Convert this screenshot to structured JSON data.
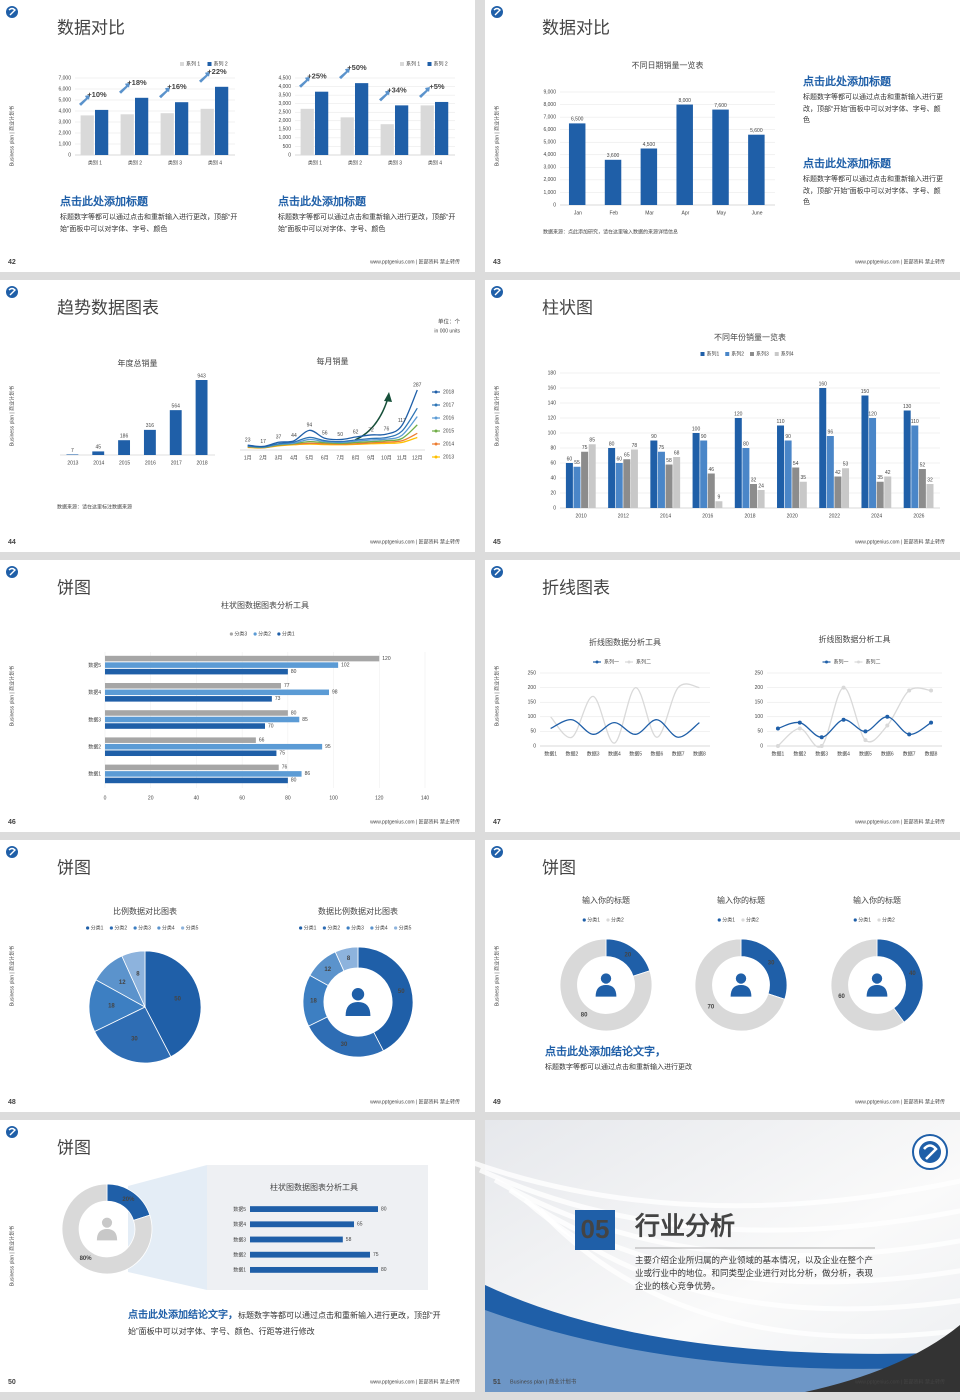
{
  "side_text": "Business plan | 商业计划书",
  "footer": "www.pptgenius.com | 匠部资料 禁止转传",
  "slides": [
    {
      "page": "42",
      "title": "数据对比",
      "charts": [
        {
          "type": "bar",
          "categories": [
            "类别 1",
            "类别 2",
            "类别 3",
            "类别 4"
          ],
          "series": [
            {
              "name": "系列 1",
              "color": "#d9d9d9",
              "values": [
                3600,
                3700,
                3800,
                4200
              ]
            },
            {
              "name": "系列 2",
              "color": "#1f5fa8",
              "values": [
                4100,
                5200,
                4800,
                6200
              ]
            }
          ],
          "annotations": [
            "+10%",
            "+18%",
            "+16%",
            "+22%"
          ],
          "ylim": [
            0,
            7000
          ],
          "yticks": [
            0,
            {
              "value": 1000,
              "label": "1,000"
            },
            {
              "value": 2000,
              "label": "2,000"
            },
            {
              "value": 3000,
              "label": "3,000"
            },
            {
              "value": 4000,
              "label": "4,000"
            },
            {
              "value": 5000,
              "label": "5,000"
            },
            {
              "value": 6000,
              "label": "6,000"
            },
            {
              "value": 7000,
              "label": "7,000"
            }
          ],
          "grid": true,
          "legend": "top-right"
        },
        {
          "type": "bar",
          "categories": [
            "类别 1",
            "类别 2",
            "类别 3",
            "类别 4"
          ],
          "series": [
            {
              "name": "系列 1",
              "color": "#d9d9d9",
              "values": [
                2700,
                2200,
                1800,
                2900
              ]
            },
            {
              "name": "系列 2",
              "color": "#1f5fa8",
              "values": [
                3700,
                4200,
                2900,
                3100
              ]
            }
          ],
          "annotations": [
            "+25%",
            "+50%",
            "+34%",
            "+5%"
          ],
          "ylim": [
            0,
            4500
          ],
          "yticks": [
            0,
            500,
            {
              "value": 1000,
              "label": "1,000"
            },
            {
              "value": 1500,
              "label": "1,500"
            },
            {
              "value": 2000,
              "label": "2,000"
            },
            {
              "value": 2500,
              "label": "2,500"
            },
            {
              "value": 3000,
              "label": "3,000"
            },
            {
              "value": 3500,
              "label": "3,500"
            },
            {
              "value": 4000,
              "label": "4,000"
            },
            {
              "value": 4500,
              "label": "4,500"
            }
          ],
          "grid": true,
          "legend": "top-right"
        }
      ],
      "blocks": [
        {
          "heading": "点击此处添加标题",
          "body": "标题数字等都可以通过点击和重新输入进行更改，顶部“开始”面板中可以对字体、字号、颜色"
        },
        {
          "heading": "点击此处添加标题",
          "body": "标题数字等都可以通过点击和重新输入进行更改，顶部“开始”面板中可以对字体、字号、颜色"
        }
      ]
    },
    {
      "page": "43",
      "title": "数据对比",
      "charts": [
        {
          "type": "bar",
          "title": "不同日期销量一览表",
          "categories": [
            "Jan",
            "Feb",
            "Mar",
            "Apr",
            "May",
            "June"
          ],
          "series": [
            {
              "color": "#1f5fa8",
              "values": [
                6500,
                3600,
                4500,
                8000,
                7600,
                5600
              ],
              "value_labels": [
                "6,500",
                "3,600",
                "4,500",
                "8,000",
                "7,600",
                "5,600"
              ]
            }
          ],
          "ylim": [
            0,
            9000
          ],
          "yticks": [
            0,
            {
              "value": 1000,
              "label": "1,000"
            },
            {
              "value": 2000,
              "label": "2,000"
            },
            {
              "value": 3000,
              "label": "3,000"
            },
            {
              "value": 4000,
              "label": "4,000"
            },
            {
              "value": 5000,
              "label": "5,000"
            },
            {
              "value": 6000,
              "label": "6,000"
            },
            {
              "value": 7000,
              "label": "7,000"
            },
            {
              "value": 8000,
              "label": "8,000"
            },
            {
              "value": 9000,
              "label": "9,000"
            }
          ],
          "grid": true
        }
      ],
      "source": "数据来源：点此添加研究，请在这里输入数据的来源详情信息",
      "blocks": [
        {
          "heading": "点击此处添加标题",
          "body": "标题数字等都可以通过点击和重新输入进行更改，顶部“开始”面板中可以对字体、字号、颜色"
        },
        {
          "heading": "点击此处添加标题",
          "body": "标题数字等都可以通过点击和重新输入进行更改，顶部“开始”面板中可以对字体、字号、颜色"
        }
      ]
    },
    {
      "page": "44",
      "title": "趋势数据图表",
      "unit": "单位：个",
      "unit_en": "in 000 units",
      "charts": [
        {
          "type": "bar",
          "title": "年度总销量",
          "categories": [
            "2013",
            "2014",
            "2015",
            "2016",
            "2017",
            "2018"
          ],
          "series": [
            {
              "color": "#1f5fa8",
              "values": [
                7,
                45,
                186,
                316,
                564,
                943
              ]
            }
          ],
          "show_values": true
        },
        {
          "type": "line",
          "title": "每月销量",
          "categories": [
            "1月",
            "2月",
            "3月",
            "4月",
            "5月",
            "6月",
            "7月",
            "8月",
            "9月",
            "10月",
            "11月",
            "12月"
          ],
          "series": [
            {
              "name": "2018",
              "color": "#1f5fa8",
              "values": [
                23,
                17,
                37,
                44,
                94,
                56,
                50,
                62,
                72,
                76,
                117,
                287
              ],
              "show_values": true
            },
            {
              "name": "2017",
              "color": "#2e75b6",
              "values": [
                20,
                15,
                30,
                38,
                60,
                45,
                40,
                48,
                55,
                60,
                90,
                200
              ]
            },
            {
              "name": "2016",
              "color": "#5b9bd5",
              "values": [
                18,
                14,
                27,
                33,
                50,
                40,
                36,
                42,
                48,
                52,
                70,
                160
              ]
            },
            {
              "name": "2015",
              "color": "#70ad47",
              "values": [
                16,
                12,
                24,
                30,
                40,
                35,
                32,
                36,
                40,
                45,
                55,
                120
              ]
            },
            {
              "name": "2014",
              "color": "#ed7d31",
              "values": [
                14,
                11,
                22,
                28,
                32,
                30,
                28,
                30,
                34,
                38,
                44,
                80
              ]
            },
            {
              "name": "2013",
              "color": "#ffc000",
              "values": [
                12,
                10,
                20,
                25,
                28,
                26,
                25,
                27,
                30,
                32,
                36,
                60
              ]
            }
          ],
          "legend": "right"
        }
      ],
      "source": "数据来源：请在这里标注数据来源"
    },
    {
      "page": "45",
      "title": "柱状图",
      "charts": [
        {
          "type": "bar",
          "title": "不同年份销量一览表",
          "categories": [
            "2010",
            "2012",
            "2014",
            "2016",
            "2018",
            "2020",
            "2022",
            "2024",
            "2026"
          ],
          "series": [
            {
              "name": "系列1",
              "color": "#1f5fa8",
              "values": [
                60,
                80,
                90,
                100,
                120,
                110,
                160,
                150,
                130
              ]
            },
            {
              "name": "系列2",
              "color": "#4a86c8",
              "values": [
                55,
                60,
                75,
                90,
                80,
                90,
                96,
                120,
                110
              ]
            },
            {
              "name": "系列3",
              "color": "#8c8c8c",
              "values": [
                75,
                65,
                58,
                46,
                32,
                54,
                42,
                35,
                52
              ]
            },
            {
              "name": "系列4",
              "color": "#c8c8c8",
              "values": [
                85,
                78,
                68,
                9,
                24,
                35,
                53,
                42,
                32
              ]
            }
          ],
          "ylim": [
            0,
            180
          ],
          "yticks": [
            0,
            20,
            40,
            60,
            80,
            100,
            120,
            140,
            160,
            180
          ],
          "grid": true,
          "legend": "top",
          "show_values": true
        }
      ]
    },
    {
      "page": "46",
      "title": "饼图",
      "charts": [
        {
          "type": "hbar",
          "title": "柱状图数据图表分析工具",
          "categories": [
            "数据1",
            "数据2",
            "数据3",
            "数据4",
            "数据5"
          ],
          "series": [
            {
              "name": "分类3",
              "color": "#a6a6a6",
              "values": [
                76,
                66,
                80,
                77,
                120
              ]
            },
            {
              "name": "分类2",
              "color": "#5b9bd5",
              "values": [
                86,
                95,
                85,
                98,
                102
              ]
            },
            {
              "name": "分类1",
              "color": "#1f5fa8",
              "values": [
                80,
                75,
                70,
                73,
                80
              ]
            }
          ],
          "xlim": [
            0,
            140
          ],
          "xticks": [
            0,
            20,
            40,
            60,
            80,
            100,
            120,
            140
          ],
          "grid": true,
          "legend": "top",
          "show_values": true
        }
      ]
    },
    {
      "page": "47",
      "title": "折线图表",
      "charts": [
        {
          "type": "line",
          "title": "折线图数据分析工具",
          "categories": [
            "数据1",
            "数据2",
            "数据3",
            "数据4",
            "数据5",
            "数据6",
            "数据7",
            "数据8"
          ],
          "series": [
            {
              "name": "系列一",
              "color": "#1f5fa8",
              "values": [
                60,
                90,
                40,
                80,
                40,
                90,
                30,
                80
              ]
            },
            {
              "name": "系列二",
              "color": "#d9d9d9",
              "values": [
                100,
                30,
                170,
                10,
                200,
                30,
                200,
                200
              ]
            }
          ],
          "ylim": [
            0,
            250
          ],
          "yticks": [
            0,
            50,
            100,
            150,
            200,
            250
          ],
          "grid": true,
          "legend": "top"
        },
        {
          "type": "line",
          "title": "折线图数据分析工具",
          "categories": [
            "数据1",
            "数据2",
            "数据3",
            "数据4",
            "数据5",
            "数据6",
            "数据7",
            "数据8"
          ],
          "series": [
            {
              "name": "系列一",
              "color": "#1f5fa8",
              "values": [
                60,
                80,
                30,
                90,
                50,
                100,
                40,
                80
              ]
            },
            {
              "name": "系列二",
              "color": "#d9d9d9",
              "values": [
                0,
                60,
                0,
                200,
                20,
                70,
                190,
                190
              ]
            }
          ],
          "ylim": [
            0,
            250
          ],
          "yticks": [
            0,
            50,
            100,
            150,
            200,
            250
          ],
          "grid": true,
          "legend": "top",
          "markers": true
        }
      ]
    },
    {
      "page": "48",
      "title": "饼图",
      "charts": [
        {
          "type": "pie",
          "title": "比例数据对比图表",
          "categories": [
            "分类1",
            "分类2",
            "分类3",
            "分类4",
            "分类5"
          ],
          "values": [
            50,
            30,
            18,
            12,
            8
          ],
          "colors": [
            "#1f5fa8",
            "#2e6db4",
            "#3d7fc2",
            "#5b93cc",
            "#8db3dd"
          ],
          "legend": "top",
          "show_values": true
        },
        {
          "type": "donut",
          "title": "数据比例数据对比图表",
          "categories": [
            "分类1",
            "分类2",
            "分类3",
            "分类4",
            "分类5"
          ],
          "values": [
            50,
            30,
            18,
            12,
            8
          ],
          "colors": [
            "#1f5fa8",
            "#2e6db4",
            "#3d7fc2",
            "#5b93cc",
            "#8db3dd"
          ],
          "legend": "top",
          "show_values": true
        }
      ]
    },
    {
      "page": "49",
      "title": "饼图",
      "charts": [
        {
          "type": "donut",
          "title": "输入你的标题",
          "categories": [
            "分类1",
            "分类2"
          ],
          "values": [
            20,
            80
          ],
          "colors": [
            "#1f5fa8",
            "#d9d9d9"
          ],
          "legend": "top",
          "show_values": true
        },
        {
          "type": "donut",
          "title": "输入你的标题",
          "categories": [
            "分类1",
            "分类2"
          ],
          "values": [
            30,
            70
          ],
          "colors": [
            "#1f5fa8",
            "#d9d9d9"
          ],
          "legend": "top",
          "show_values": true
        },
        {
          "type": "donut",
          "title": "输入你的标题",
          "categories": [
            "分类1",
            "分类2"
          ],
          "values": [
            40,
            60
          ],
          "colors": [
            "#1f5fa8",
            "#d9d9d9"
          ],
          "legend": "top",
          "show_values": true
        }
      ],
      "blocks": [
        {
          "heading": "点击此处添加结论文字，",
          "body": "标题数字等都可以通过点击和重新输入进行更改"
        }
      ]
    },
    {
      "page": "50",
      "title": "饼图",
      "charts": [
        {
          "type": "donut",
          "values": [
            20,
            80
          ],
          "value_labels": [
            "20%",
            "80%"
          ],
          "colors": [
            "#1f5fa8",
            "#d9d9d9"
          ]
        },
        {
          "type": "hbar",
          "title": "柱状图数据图表分析工具",
          "categories": [
            "数据1",
            "数据2",
            "数据3",
            "数据4",
            "数据5"
          ],
          "series": [
            {
              "color": "#1f5fa8",
              "values": [
                80,
                75,
                58,
                65,
                80
              ]
            }
          ],
          "show_values": true
        }
      ],
      "blocks": [
        {
          "heading": "点击此处添加结论文字，",
          "body": "标题数字等都可以通过点击和重新输入进行更改，顶部“开始”面板中可以对字体、字号、颜色、行距等进行修改"
        }
      ]
    },
    {
      "page": "51",
      "section_number": "05",
      "section_title": "行业分析",
      "body": "主要介绍企业所归属的产业领域的基本情况，以及企业在整个产业或行业中的地位。和同类型企业进行对比分析，做分析，表现企业的核心竞争优势。"
    }
  ]
}
